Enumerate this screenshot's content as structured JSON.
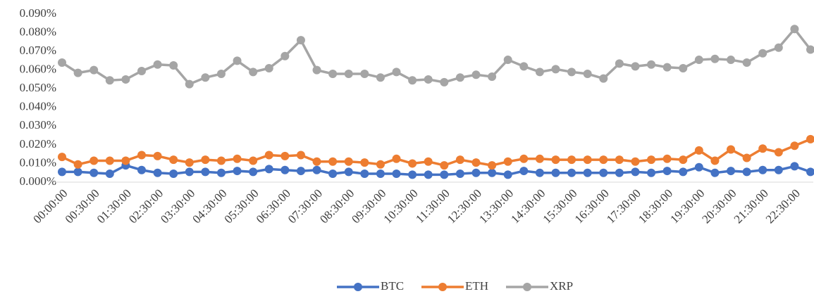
{
  "chart_data": {
    "type": "line",
    "categories": [
      "00:00:00",
      null,
      "00:30:00",
      null,
      "01:30:00",
      null,
      "02:30:00",
      null,
      "03:30:00",
      null,
      "04:30:00",
      null,
      "05:30:00",
      null,
      "06:30:00",
      null,
      "07:30:00",
      null,
      "08:30:00",
      null,
      "09:30:00",
      null,
      "10:30:00",
      null,
      "11:30:00",
      null,
      "12:30:00",
      null,
      "13:30:00",
      null,
      "14:30:00",
      null,
      "15:30:00",
      null,
      "16:30:00",
      null,
      "17:30:00",
      null,
      "18:30:00",
      null,
      "19:30:00",
      null,
      "20:30:00",
      null,
      "21:30:00",
      null,
      "22:30:00",
      null
    ],
    "series": [
      {
        "name": "BTC",
        "color": "#4472c4",
        "values": [
          0.0055,
          0.0055,
          0.005,
          0.0045,
          0.009,
          0.0065,
          0.005,
          0.0045,
          0.0055,
          0.0055,
          0.005,
          0.006,
          0.0055,
          0.007,
          0.0065,
          0.006,
          0.0065,
          0.0045,
          0.0055,
          0.0045,
          0.0045,
          0.0045,
          0.004,
          0.004,
          0.004,
          0.0045,
          0.005,
          0.005,
          0.004,
          0.006,
          0.005,
          0.005,
          0.005,
          0.005,
          0.005,
          0.005,
          0.0055,
          0.005,
          0.006,
          0.0055,
          0.008,
          0.005,
          0.006,
          0.0055,
          0.0065,
          0.0065,
          0.0085,
          0.0055
        ]
      },
      {
        "name": "ETH",
        "color": "#ed7d31",
        "values": [
          0.0135,
          0.0095,
          0.0115,
          0.0115,
          0.0115,
          0.0145,
          0.014,
          0.012,
          0.0105,
          0.012,
          0.0115,
          0.0125,
          0.0115,
          0.0145,
          0.014,
          0.0145,
          0.011,
          0.011,
          0.011,
          0.0105,
          0.0095,
          0.0125,
          0.01,
          0.011,
          0.009,
          0.012,
          0.0105,
          0.009,
          0.011,
          0.0125,
          0.0125,
          0.012,
          0.012,
          0.012,
          0.012,
          0.012,
          0.011,
          0.012,
          0.0125,
          0.012,
          0.017,
          0.0115,
          0.0175,
          0.013,
          0.018,
          0.016,
          0.0195,
          0.023
        ]
      },
      {
        "name": "XRP",
        "color": "#a5a5a5",
        "values": [
          0.064,
          0.0585,
          0.06,
          0.0545,
          0.055,
          0.0595,
          0.063,
          0.0625,
          0.0525,
          0.056,
          0.058,
          0.065,
          0.059,
          0.061,
          0.0675,
          0.076,
          0.06,
          0.058,
          0.058,
          0.058,
          0.056,
          0.059,
          0.0545,
          0.055,
          0.0535,
          0.056,
          0.0575,
          0.0565,
          0.0655,
          0.062,
          0.059,
          0.0605,
          0.059,
          0.058,
          0.0555,
          0.0635,
          0.062,
          0.063,
          0.0615,
          0.061,
          0.0655,
          0.066,
          0.0655,
          0.064,
          0.069,
          0.072,
          0.082,
          0.071
        ]
      }
    ],
    "ylim": [
      0,
      0.09
    ],
    "yticks": [
      {
        "value": 0,
        "label": "0.000%"
      },
      {
        "value": 0.01,
        "label": "0.010%"
      },
      {
        "value": 0.02,
        "label": "0.020%"
      },
      {
        "value": 0.03,
        "label": "0.030%"
      },
      {
        "value": 0.04,
        "label": "0.040%"
      },
      {
        "value": 0.05,
        "label": "0.050%"
      },
      {
        "value": 0.06,
        "label": "0.060%"
      },
      {
        "value": 0.07,
        "label": "0.070%"
      },
      {
        "value": 0.08,
        "label": "0.080%"
      },
      {
        "value": 0.09,
        "label": "0.090%"
      }
    ],
    "grid": false,
    "legend": "bottom"
  }
}
